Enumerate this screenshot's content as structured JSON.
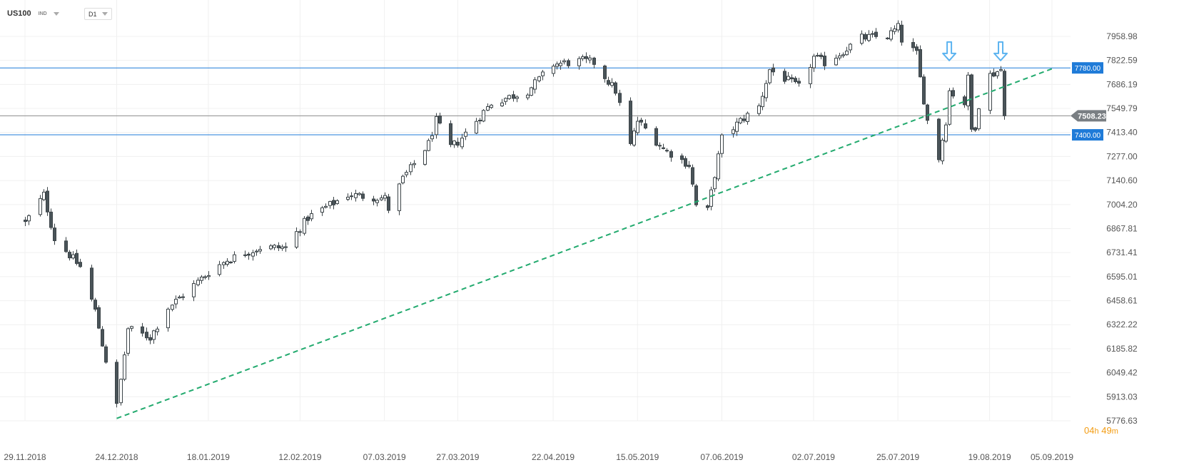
{
  "toolbar": {
    "symbol": "US100",
    "type": "IND",
    "timeframe": "D1"
  },
  "timer": {
    "hours": "04",
    "h": "h",
    "minutes": "49",
    "m": "m"
  },
  "colors": {
    "grid": "#f0f0f0",
    "axis_text": "#555555",
    "candle_border": "#3c4448",
    "candle_down": "#4a5459",
    "candle_up": "#ffffff",
    "horizontal_level": "#1f7bd8",
    "price_line": "#8c8c8c",
    "trendline": "#22aa6e",
    "arrow": "#5bb3f0",
    "price_tag": "#7a7f83",
    "level_tag": "#1f7bd8",
    "timer": "#f39c12"
  },
  "chart_data": {
    "type": "candlestick",
    "symbol": "US100",
    "timeframe": "D1",
    "ylim": [
      5776.63,
      8050
    ],
    "y_ticks": [
      "7958.98",
      "7822.59",
      "7686.19",
      "7549.79",
      "7413.40",
      "7277.00",
      "7140.60",
      "7004.20",
      "6867.81",
      "6731.41",
      "6595.01",
      "6458.61",
      "6322.22",
      "6185.82",
      "6049.42",
      "5913.03",
      "5776.63"
    ],
    "x_ticks": [
      "29.11.2018",
      "24.12.2018",
      "18.01.2019",
      "12.02.2019",
      "07.03.2019",
      "27.03.2019",
      "22.04.2019",
      "15.05.2019",
      "07.06.2019",
      "02.07.2019",
      "25.07.2019",
      "19.08.2019",
      "05.09.2019"
    ],
    "current_price": {
      "value": 7508.23,
      "label": "7508.23"
    },
    "levels": [
      {
        "value": 7780.0,
        "label": "7780.00"
      },
      {
        "value": 7400.0,
        "label": "7400.00"
      }
    ],
    "trendline": {
      "start": [
        "24.12.2018",
        5790
      ],
      "end": [
        "05.09.2019",
        7775
      ]
    },
    "arrows": [
      {
        "date": "08.08.2019",
        "value": 7830
      },
      {
        "date": "22.08.2019",
        "value": 7830
      }
    ],
    "waypoints": [
      [
        "29.11.2018",
        6900
      ],
      [
        "04.12.2018",
        7060
      ],
      [
        "07.12.2018",
        6810
      ],
      [
        "14.12.2018",
        6650
      ],
      [
        "18.12.2018",
        6400
      ],
      [
        "21.12.2018",
        6120
      ],
      [
        "24.12.2018",
        5860
      ],
      [
        "27.12.2018",
        6300
      ],
      [
        "02.01.2019",
        6250
      ],
      [
        "07.01.2019",
        6420
      ],
      [
        "18.01.2019",
        6620
      ],
      [
        "23.01.2019",
        6690
      ],
      [
        "01.02.2019",
        6760
      ],
      [
        "08.02.2019",
        6760
      ],
      [
        "14.02.2019",
        6930
      ],
      [
        "25.02.2019",
        7060
      ],
      [
        "07.03.2019",
        7040
      ],
      [
        "08.03.2019",
        6980
      ],
      [
        "12.03.2019",
        7150
      ],
      [
        "19.03.2019",
        7350
      ],
      [
        "21.03.2019",
        7480
      ],
      [
        "25.03.2019",
        7330
      ],
      [
        "27.03.2019",
        7360
      ],
      [
        "05.04.2019",
        7580
      ],
      [
        "15.04.2019",
        7650
      ],
      [
        "22.04.2019",
        7800
      ],
      [
        "30.04.2019",
        7820
      ],
      [
        "03.05.2019",
        7810
      ],
      [
        "09.05.2019",
        7650
      ],
      [
        "13.05.2019",
        7340
      ],
      [
        "15.05.2019",
        7480
      ],
      [
        "22.05.2019",
        7320
      ],
      [
        "29.05.2019",
        7230
      ],
      [
        "31.05.2019",
        7000
      ],
      [
        "03.06.2019",
        6970
      ],
      [
        "07.06.2019",
        7380
      ],
      [
        "12.06.2019",
        7480
      ],
      [
        "17.06.2019",
        7560
      ],
      [
        "20.06.2019",
        7770
      ],
      [
        "24.06.2019",
        7720
      ],
      [
        "28.06.2019",
        7670
      ],
      [
        "02.07.2019",
        7840
      ],
      [
        "05.07.2019",
        7810
      ],
      [
        "09.07.2019",
        7860
      ],
      [
        "15.07.2019",
        7950
      ],
      [
        "22.07.2019",
        7960
      ],
      [
        "25.07.2019",
        8010
      ],
      [
        "26.07.2019",
        7940
      ],
      [
        "30.07.2019",
        7860
      ],
      [
        "31.07.2019",
        7720
      ],
      [
        "02.08.2019",
        7480
      ],
      [
        "05.08.2019",
        7270
      ],
      [
        "07.08.2019",
        7480
      ],
      [
        "08.08.2019",
        7650
      ],
      [
        "12.08.2019",
        7580
      ],
      [
        "13.08.2019",
        7720
      ],
      [
        "14.08.2019",
        7430
      ],
      [
        "15.08.2019",
        7450
      ],
      [
        "16.08.2019",
        7570
      ],
      [
        "19.08.2019",
        7740
      ],
      [
        "22.08.2019",
        7770
      ],
      [
        "23.08.2019",
        7508
      ]
    ]
  }
}
